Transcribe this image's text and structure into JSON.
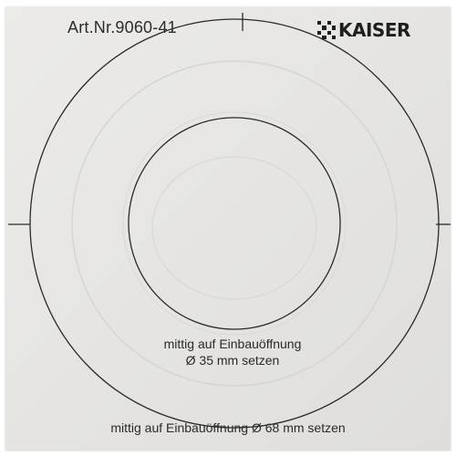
{
  "article_number": "Art.Nr.9060-41",
  "logo": {
    "text": "KAISER",
    "icon": "kaiser-logo-mark-icon"
  },
  "inner_instruction": {
    "line1": "mittig auf Einbauöffnung",
    "line2": "Ø 35 mm setzen"
  },
  "outer_instruction": "mittig auf Einbauöffnung Ø 68 mm setzen",
  "colors": {
    "paper": "#e6e5e2",
    "line": "#2a2a2a",
    "emboss": "#d4d3d0"
  }
}
